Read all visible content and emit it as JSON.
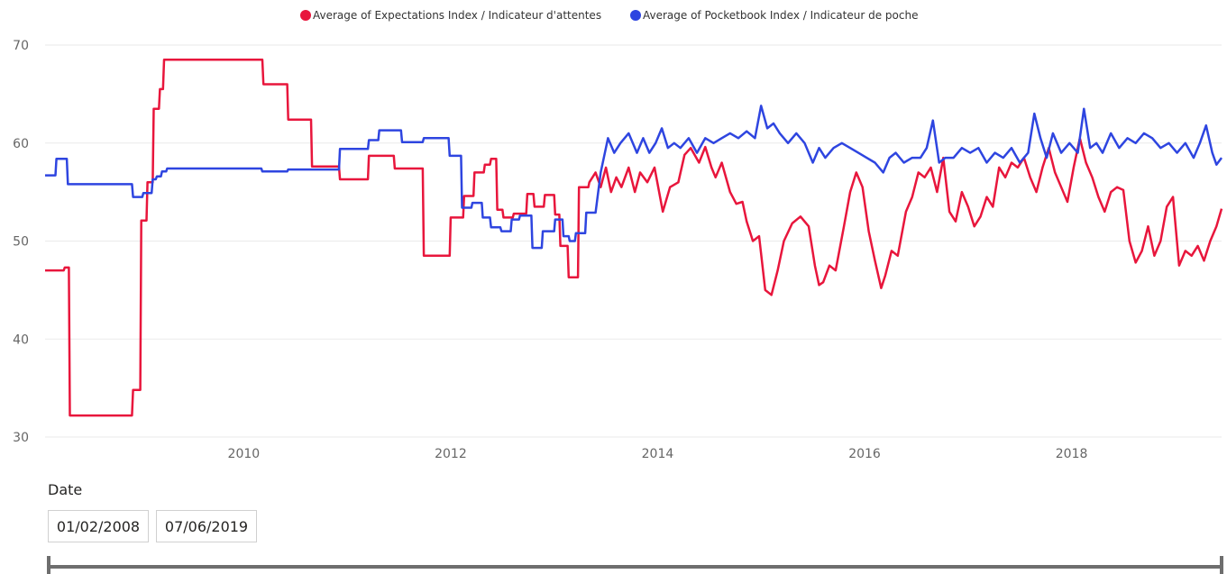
{
  "colors": {
    "expectations": "#e8163c",
    "pocketbook": "#2e45e0",
    "grid": "#eaeaea"
  },
  "slicer": {
    "title": "Date",
    "start": "01/02/2008",
    "end": "07/06/2019"
  },
  "chart_data": {
    "type": "line",
    "title": "",
    "xlabel": "",
    "ylabel": "",
    "xlim": [
      2008.08,
      2019.45
    ],
    "ylim": [
      30,
      70
    ],
    "yticks": [
      30,
      40,
      50,
      60,
      70
    ],
    "xticks": [
      2010,
      2012,
      2014,
      2016,
      2018
    ],
    "xtick_labels": [
      "2010",
      "2012",
      "2014",
      "2016",
      "2018"
    ],
    "grid": true,
    "legend_position": "top",
    "series": [
      {
        "name": "Average of Expectations Index / Indicateur d'attentes",
        "color": "#e8163c",
        "x": [
          2008.08,
          2008.26,
          2008.27,
          2008.31,
          2008.32,
          2008.92,
          2008.93,
          2009.0,
          2009.01,
          2009.06,
          2009.07,
          2009.12,
          2009.13,
          2009.18,
          2009.19,
          2009.22,
          2009.23,
          2010.18,
          2010.19,
          2010.42,
          2010.43,
          2010.65,
          2010.66,
          2010.92,
          2010.93,
          2011.2,
          2011.21,
          2011.45,
          2011.46,
          2011.73,
          2011.74,
          2011.99,
          2012.0,
          2012.12,
          2012.13,
          2012.22,
          2012.23,
          2012.32,
          2012.33,
          2012.38,
          2012.39,
          2012.44,
          2012.45,
          2012.5,
          2012.51,
          2012.6,
          2012.61,
          2012.73,
          2012.74,
          2012.8,
          2012.81,
          2012.9,
          2012.91,
          2013.0,
          2013.01,
          2013.05,
          2013.06,
          2013.13,
          2013.14,
          2013.23,
          2013.24,
          2013.33,
          2013.34,
          2013.4,
          2013.45,
          2013.5,
          2013.55,
          2013.6,
          2013.65,
          2013.72,
          2013.78,
          2013.83,
          2013.9,
          2013.97,
          2014.05,
          2014.12,
          2014.2,
          2014.26,
          2014.32,
          2014.4,
          2014.46,
          2014.52,
          2014.56,
          2014.62,
          2014.7,
          2014.76,
          2014.82,
          2014.86,
          2014.92,
          2014.98,
          2015.04,
          2015.1,
          2015.16,
          2015.22,
          2015.3,
          2015.38,
          2015.46,
          2015.52,
          2015.56,
          2015.6,
          2015.66,
          2015.72,
          2015.8,
          2015.86,
          2015.92,
          2015.98,
          2016.04,
          2016.1,
          2016.16,
          2016.2,
          2016.26,
          2016.32,
          2016.4,
          2016.46,
          2016.52,
          2016.58,
          2016.64,
          2016.7,
          2016.76,
          2016.82,
          2016.88,
          2016.94,
          2017.0,
          2017.06,
          2017.12,
          2017.18,
          2017.24,
          2017.3,
          2017.36,
          2017.42,
          2017.48,
          2017.54,
          2017.6,
          2017.66,
          2017.72,
          2017.78,
          2017.84,
          2017.9,
          2017.96,
          2018.02,
          2018.08,
          2018.14,
          2018.2,
          2018.26,
          2018.32,
          2018.38,
          2018.44,
          2018.5,
          2018.56,
          2018.62,
          2018.68,
          2018.74,
          2018.8,
          2018.86,
          2018.92,
          2018.98,
          2019.04,
          2019.1,
          2019.16,
          2019.22,
          2019.28,
          2019.34,
          2019.4,
          2019.45
        ],
        "y": [
          47.0,
          47.0,
          47.3,
          47.3,
          32.2,
          32.2,
          34.8,
          34.8,
          52.1,
          52.1,
          56.0,
          56.0,
          63.5,
          63.5,
          65.5,
          65.5,
          68.5,
          68.5,
          66.0,
          66.0,
          62.4,
          62.4,
          57.6,
          57.6,
          56.3,
          56.3,
          58.7,
          58.7,
          57.4,
          57.4,
          48.5,
          48.5,
          52.4,
          52.4,
          54.6,
          54.6,
          57.0,
          57.0,
          57.8,
          57.8,
          58.4,
          58.4,
          53.2,
          53.2,
          52.4,
          52.4,
          52.8,
          52.8,
          54.8,
          54.8,
          53.5,
          53.5,
          54.7,
          54.7,
          52.7,
          52.7,
          49.5,
          49.5,
          46.3,
          46.3,
          55.5,
          55.5,
          56.0,
          57.0,
          55.5,
          57.5,
          55.0,
          56.5,
          55.5,
          57.5,
          55.0,
          57.0,
          56.0,
          57.5,
          53.0,
          55.5,
          56.0,
          58.8,
          59.5,
          58.0,
          59.6,
          57.5,
          56.5,
          58.0,
          55.0,
          53.8,
          54.0,
          52.0,
          50.0,
          50.5,
          45.0,
          44.5,
          47.0,
          50.0,
          51.8,
          52.5,
          51.5,
          47.5,
          45.5,
          45.8,
          47.5,
          47.0,
          51.5,
          55.0,
          57.0,
          55.5,
          51.0,
          48.0,
          45.2,
          46.5,
          49.0,
          48.5,
          53.0,
          54.5,
          57.0,
          56.5,
          57.5,
          55.0,
          58.5,
          53.0,
          52.0,
          55.0,
          53.5,
          51.5,
          52.5,
          54.5,
          53.5,
          57.5,
          56.5,
          58.0,
          57.5,
          58.5,
          56.5,
          55.0,
          57.5,
          59.5,
          57.0,
          55.5,
          54.0,
          57.5,
          60.5,
          58.0,
          56.5,
          54.5,
          53.0,
          55.0,
          55.5,
          55.2,
          50.0,
          47.8,
          49.0,
          51.5,
          48.5,
          50.0,
          53.5,
          54.5,
          47.5,
          49.0,
          48.5,
          49.5,
          48.0,
          50.0,
          51.5,
          53.3
        ]
      },
      {
        "name": "Average of Pocketbook Index / Indicateur de poche",
        "color": "#2e45e0",
        "x": [
          2008.08,
          2008.18,
          2008.19,
          2008.29,
          2008.3,
          2008.92,
          2008.93,
          2009.02,
          2009.03,
          2009.11,
          2009.12,
          2009.15,
          2009.16,
          2009.2,
          2009.21,
          2009.25,
          2009.26,
          2010.17,
          2010.18,
          2010.42,
          2010.43,
          2010.92,
          2010.93,
          2011.2,
          2011.21,
          2011.3,
          2011.31,
          2011.52,
          2011.53,
          2011.73,
          2011.74,
          2011.98,
          2011.99,
          2012.1,
          2012.11,
          2012.2,
          2012.21,
          2012.3,
          2012.31,
          2012.38,
          2012.39,
          2012.48,
          2012.49,
          2012.58,
          2012.59,
          2012.66,
          2012.67,
          2012.78,
          2012.79,
          2012.88,
          2012.89,
          2013.0,
          2013.01,
          2013.08,
          2013.09,
          2013.14,
          2013.15,
          2013.2,
          2013.21,
          2013.3,
          2013.31,
          2013.4,
          2013.45,
          2013.52,
          2013.58,
          2013.64,
          2013.72,
          2013.8,
          2013.86,
          2013.92,
          2013.98,
          2014.04,
          2014.1,
          2014.16,
          2014.22,
          2014.3,
          2014.38,
          2014.46,
          2014.54,
          2014.62,
          2014.7,
          2014.78,
          2014.86,
          2014.94,
          2015.0,
          2015.06,
          2015.12,
          2015.18,
          2015.26,
          2015.34,
          2015.42,
          2015.5,
          2015.56,
          2015.62,
          2015.7,
          2015.78,
          2015.86,
          2015.94,
          2016.02,
          2016.1,
          2016.18,
          2016.24,
          2016.3,
          2016.38,
          2016.46,
          2016.54,
          2016.6,
          2016.66,
          2016.72,
          2016.78,
          2016.86,
          2016.94,
          2017.02,
          2017.1,
          2017.18,
          2017.26,
          2017.34,
          2017.42,
          2017.5,
          2017.58,
          2017.64,
          2017.7,
          2017.76,
          2017.82,
          2017.9,
          2017.98,
          2018.06,
          2018.12,
          2018.18,
          2018.24,
          2018.3,
          2018.38,
          2018.46,
          2018.54,
          2018.62,
          2018.7,
          2018.78,
          2018.86,
          2018.94,
          2019.02,
          2019.1,
          2019.18,
          2019.24,
          2019.3,
          2019.36,
          2019.4,
          2019.45
        ],
        "y": [
          56.7,
          56.7,
          58.4,
          58.4,
          55.8,
          55.8,
          54.5,
          54.5,
          54.9,
          54.9,
          56.3,
          56.3,
          56.6,
          56.6,
          57.1,
          57.1,
          57.4,
          57.4,
          57.1,
          57.1,
          57.3,
          57.3,
          59.4,
          59.4,
          60.3,
          60.3,
          61.3,
          61.3,
          60.1,
          60.1,
          60.5,
          60.5,
          58.7,
          58.7,
          53.4,
          53.4,
          53.9,
          53.9,
          52.4,
          52.4,
          51.4,
          51.4,
          51.0,
          51.0,
          52.2,
          52.2,
          52.6,
          52.6,
          49.3,
          49.3,
          51.0,
          51.0,
          52.2,
          52.2,
          50.5,
          50.5,
          50.0,
          50.0,
          50.8,
          50.8,
          52.9,
          52.9,
          57.0,
          60.5,
          59.0,
          60.0,
          61.0,
          59.0,
          60.5,
          59.0,
          60.0,
          61.5,
          59.5,
          60.0,
          59.5,
          60.5,
          59.0,
          60.5,
          60.0,
          60.5,
          61.0,
          60.5,
          61.2,
          60.5,
          63.8,
          61.5,
          62.0,
          61.0,
          60.0,
          61.0,
          60.0,
          58.0,
          59.5,
          58.5,
          59.5,
          60.0,
          59.5,
          59.0,
          58.5,
          58.0,
          57.0,
          58.5,
          59.0,
          58.0,
          58.5,
          58.5,
          59.5,
          62.3,
          58.0,
          58.5,
          58.5,
          59.5,
          59.0,
          59.5,
          58.0,
          59.0,
          58.5,
          59.5,
          58.0,
          59.0,
          63.0,
          60.5,
          58.5,
          61.0,
          59.0,
          60.0,
          59.0,
          63.5,
          59.5,
          60.0,
          59.0,
          61.0,
          59.5,
          60.5,
          60.0,
          61.0,
          60.5,
          59.5,
          60.0,
          59.0,
          60.0,
          58.5,
          60.0,
          61.8,
          59.0,
          57.8,
          58.5
        ]
      }
    ]
  }
}
